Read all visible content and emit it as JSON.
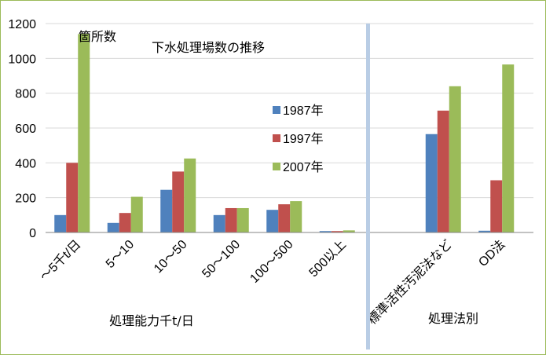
{
  "chart_data": {
    "type": "bar",
    "title": "下水処理場数の推移",
    "ylabel": "箇所数",
    "xlabel": "処理能力千t/日",
    "xlabel2": "処理法別",
    "ylim": [
      0,
      1200
    ],
    "yticks": [
      "0",
      "200",
      "400",
      "600",
      "800",
      "1000",
      "1200"
    ],
    "grid": true,
    "legend_position": "right-middle",
    "categories": [
      "～5千t/日",
      "5～10",
      "10～50",
      "50～100",
      "100～500",
      "500以上",
      "標準活性汚泥法など",
      "OD法"
    ],
    "series": [
      {
        "name": "1987年",
        "color": "#4f81bd",
        "values": [
          100,
          55,
          245,
          100,
          130,
          8,
          565,
          10
        ]
      },
      {
        "name": "1997年",
        "color": "#c0504d",
        "values": [
          400,
          112,
          350,
          140,
          162,
          8,
          700,
          300
        ]
      },
      {
        "name": "2007年",
        "color": "#9bbb59",
        "values": [
          1140,
          205,
          425,
          140,
          180,
          12,
          840,
          965
        ]
      }
    ],
    "separator_color": "#b9cde5"
  }
}
